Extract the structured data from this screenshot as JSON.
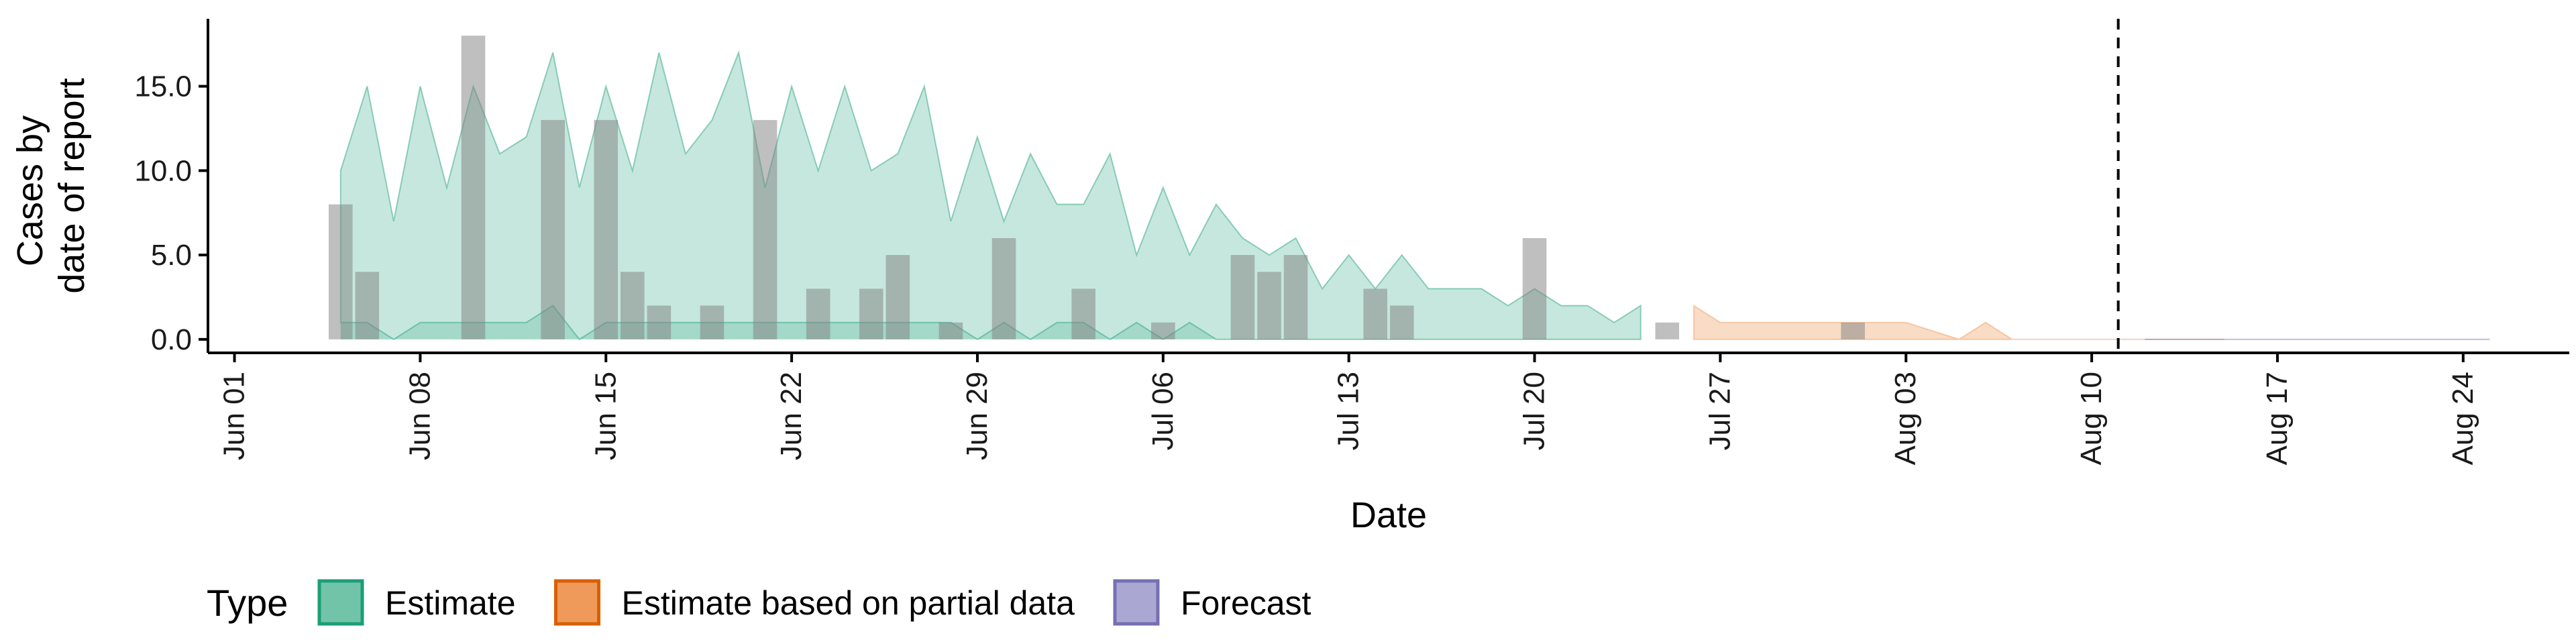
{
  "chart_data": {
    "type": "bar",
    "title": "",
    "xlabel": "Date",
    "ylabel_lines": [
      "Cases by",
      "date of report"
    ],
    "ylim": [
      -0.8,
      19
    ],
    "yticks": [
      0,
      5,
      10,
      15
    ],
    "ytick_labels": [
      "0.0",
      "5.0",
      "10.0",
      "15.0"
    ],
    "xlim": [
      "2020-05-31",
      "2020-08-28"
    ],
    "xticks": [
      "2020-06-01",
      "2020-06-08",
      "2020-06-15",
      "2020-06-22",
      "2020-06-29",
      "2020-07-06",
      "2020-07-13",
      "2020-07-20",
      "2020-07-27",
      "2020-08-03",
      "2020-08-10",
      "2020-08-17",
      "2020-08-24"
    ],
    "xtick_labels": [
      "Jun 01",
      "Jun 08",
      "Jun 15",
      "Jun 22",
      "Jun 29",
      "Jul 06",
      "Jul 13",
      "Jul 20",
      "Jul 27",
      "Aug 03",
      "Aug 10",
      "Aug 17",
      "Aug 24"
    ],
    "forecast_line_date": "2020-08-11",
    "grid": false,
    "legend": {
      "placement": "bottom-left",
      "title": "Type",
      "entries": [
        {
          "label": "Estimate",
          "fill": "#72c4a8",
          "stroke": "#1b9e77"
        },
        {
          "label": "Estimate based on partial data",
          "fill": "#ef9a5a",
          "stroke": "#d95f02"
        },
        {
          "label": "Forecast",
          "fill": "#aaa8d3",
          "stroke": "#7570b3"
        }
      ]
    },
    "colors": {
      "estimate_band": "#1b9e77",
      "partial_band": "#ef9a5a",
      "forecast_band": "#7570b3",
      "bars": "#808080"
    },
    "observed_cases": [
      {
        "date": "2020-06-05",
        "value": 8
      },
      {
        "date": "2020-06-06",
        "value": 4
      },
      {
        "date": "2020-06-10",
        "value": 18
      },
      {
        "date": "2020-06-13",
        "value": 13
      },
      {
        "date": "2020-06-15",
        "value": 13
      },
      {
        "date": "2020-06-16",
        "value": 4
      },
      {
        "date": "2020-06-17",
        "value": 2
      },
      {
        "date": "2020-06-19",
        "value": 2
      },
      {
        "date": "2020-06-21",
        "value": 13
      },
      {
        "date": "2020-06-23",
        "value": 3
      },
      {
        "date": "2020-06-25",
        "value": 3
      },
      {
        "date": "2020-06-26",
        "value": 5
      },
      {
        "date": "2020-06-28",
        "value": 1
      },
      {
        "date": "2020-06-30",
        "value": 6
      },
      {
        "date": "2020-07-03",
        "value": 3
      },
      {
        "date": "2020-07-06",
        "value": 1
      },
      {
        "date": "2020-07-09",
        "value": 5
      },
      {
        "date": "2020-07-10",
        "value": 4
      },
      {
        "date": "2020-07-11",
        "value": 5
      },
      {
        "date": "2020-07-14",
        "value": 3
      },
      {
        "date": "2020-07-15",
        "value": 2
      },
      {
        "date": "2020-07-20",
        "value": 6
      },
      {
        "date": "2020-07-25",
        "value": 1
      },
      {
        "date": "2020-08-01",
        "value": 1
      }
    ],
    "series": [
      {
        "type_key": "estimate",
        "start": "2020-06-05",
        "upper": [
          10,
          15,
          7,
          15,
          9,
          15,
          11,
          12,
          17,
          9,
          15,
          10,
          17,
          11,
          13,
          17,
          9,
          15,
          10,
          15,
          10,
          11,
          15,
          7,
          12,
          7,
          11,
          8,
          8,
          11,
          5,
          9,
          5,
          8,
          6,
          5,
          6,
          3,
          5,
          3,
          5,
          3,
          3,
          3,
          2,
          3,
          2,
          2,
          1,
          2
        ],
        "lower": [
          1,
          1,
          0,
          1,
          1,
          1,
          1,
          1,
          2,
          0,
          1,
          1,
          1,
          1,
          1,
          1,
          1,
          1,
          1,
          1,
          1,
          1,
          1,
          1,
          0,
          1,
          0,
          1,
          1,
          0,
          1,
          0,
          1,
          0,
          0,
          0,
          0,
          0,
          0,
          0,
          0,
          0,
          0,
          0,
          0,
          0,
          0,
          0,
          0,
          0
        ]
      },
      {
        "type_key": "partial",
        "start": "2020-07-26",
        "upper": [
          2,
          1,
          1,
          1,
          1,
          1,
          1,
          1,
          1,
          0.5,
          0,
          1,
          0,
          0,
          0,
          0,
          0,
          0,
          0,
          0,
          0
        ],
        "lower": [
          0,
          0,
          0,
          0,
          0,
          0,
          0,
          0,
          0,
          0,
          0,
          0,
          0,
          0,
          0,
          0,
          0,
          0,
          0,
          0,
          0
        ]
      },
      {
        "type_key": "forecast",
        "start": "2020-08-12",
        "upper": [
          0,
          0,
          0,
          0,
          0,
          0,
          0,
          0,
          0,
          0,
          0,
          0,
          0,
          0
        ],
        "lower": [
          0,
          0,
          0,
          0,
          0,
          0,
          0,
          0,
          0,
          0,
          0,
          0,
          0,
          0
        ]
      }
    ]
  }
}
